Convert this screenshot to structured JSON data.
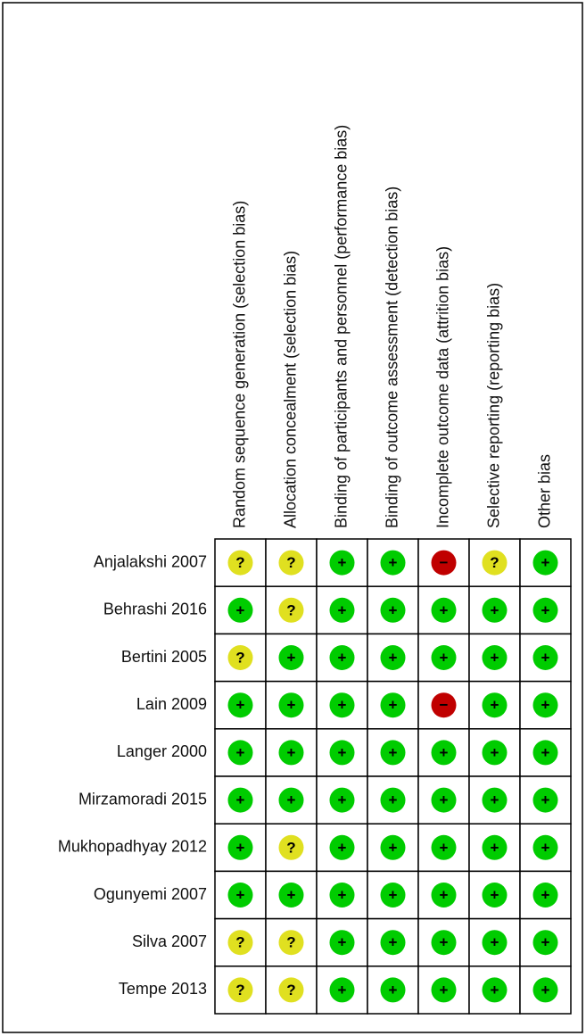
{
  "domains": [
    "Random sequence generation (selection bias)",
    "Allocation concealment (selection bias)",
    "Binding of participants and personnel (performance bias)",
    "Binding of outcome assessment (detection bias)",
    "Incomplete outcome data (attrition bias)",
    "Selective reporting (reporting bias)",
    "Other bias"
  ],
  "studies": [
    {
      "name": "Anjalakshi 2007",
      "judgments": [
        "?",
        "?",
        "+",
        "+",
        "−",
        "?",
        "+"
      ]
    },
    {
      "name": "Behrashi 2016",
      "judgments": [
        "+",
        "?",
        "+",
        "+",
        "+",
        "+",
        "+"
      ]
    },
    {
      "name": "Bertini 2005",
      "judgments": [
        "?",
        "+",
        "+",
        "+",
        "+",
        "+",
        "+"
      ]
    },
    {
      "name": "Lain 2009",
      "judgments": [
        "+",
        "+",
        "+",
        "+",
        "−",
        "+",
        "+"
      ]
    },
    {
      "name": "Langer 2000",
      "judgments": [
        "+",
        "+",
        "+",
        "+",
        "+",
        "+",
        "+"
      ]
    },
    {
      "name": "Mirzamoradi 2015",
      "judgments": [
        "+",
        "+",
        "+",
        "+",
        "+",
        "+",
        "+"
      ]
    },
    {
      "name": "Mukhopadhyay 2012",
      "judgments": [
        "+",
        "?",
        "+",
        "+",
        "+",
        "+",
        "+"
      ]
    },
    {
      "name": "Ogunyemi 2007",
      "judgments": [
        "+",
        "+",
        "+",
        "+",
        "+",
        "+",
        "+"
      ]
    },
    {
      "name": "Silva 2007",
      "judgments": [
        "?",
        "?",
        "+",
        "+",
        "+",
        "+",
        "+"
      ]
    },
    {
      "name": "Tempe 2013",
      "judgments": [
        "?",
        "?",
        "+",
        "+",
        "+",
        "+",
        "+"
      ]
    }
  ],
  "judgment_colors": {
    "+": "#00cc00",
    "?": "#e0e020",
    "−": "#c00000"
  }
}
